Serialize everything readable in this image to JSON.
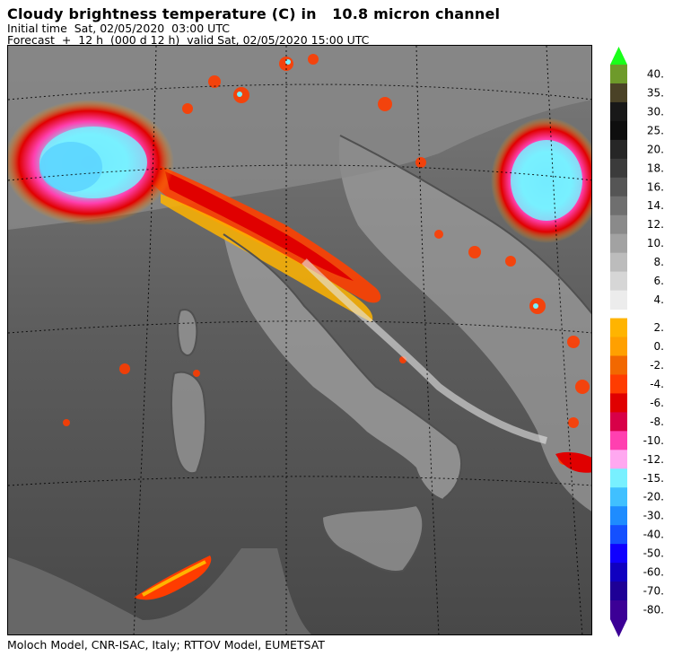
{
  "header": {
    "title": "Cloudy brightness temperature (C) in   10.8 micron channel",
    "initial_time": "Initial time  Sat, 02/05/2020  03:00 UTC",
    "forecast": "Forecast  +  12 h  (000 d 12 h)  valid Sat, 02/05/2020 15:00 UTC"
  },
  "footer": "Moloch Model, CNR-ISAC, Italy; RTTOV Model, EUMETSAT",
  "legend": {
    "labels": [
      "40.",
      "35.",
      "30.",
      "25.",
      "20.",
      "18.",
      "16.",
      "14.",
      "12.",
      "10.",
      "8.",
      "6.",
      "4.",
      "2.",
      "0.",
      "-2.",
      "-4.",
      "-6.",
      "-8.",
      "-10.",
      "-12.",
      "-15.",
      "-20.",
      "-30.",
      "-40.",
      "-50.",
      "-60.",
      "-70.",
      "-80."
    ],
    "colors": [
      "#6e9a2a",
      "#4a4226",
      "#181818",
      "#0e0e0e",
      "#262626",
      "#3b3b3b",
      "#555555",
      "#6f6f6f",
      "#8a8a8a",
      "#a2a2a2",
      "#bcbcbc",
      "#d6d6d6",
      "#ececec",
      "#ffb400",
      "#ffa000",
      "#f26800",
      "#ff3c00",
      "#e00000",
      "#d80048",
      "#ff40b0",
      "#ffa8f0",
      "#78f0ff",
      "#40c0ff",
      "#1e8cff",
      "#1450ff",
      "#1000ff",
      "#1000c0",
      "#1e0096",
      "#3c0096"
    ],
    "top_arrow_color": "#1aff1a",
    "bottom_arrow_color": "#3c0096"
  }
}
